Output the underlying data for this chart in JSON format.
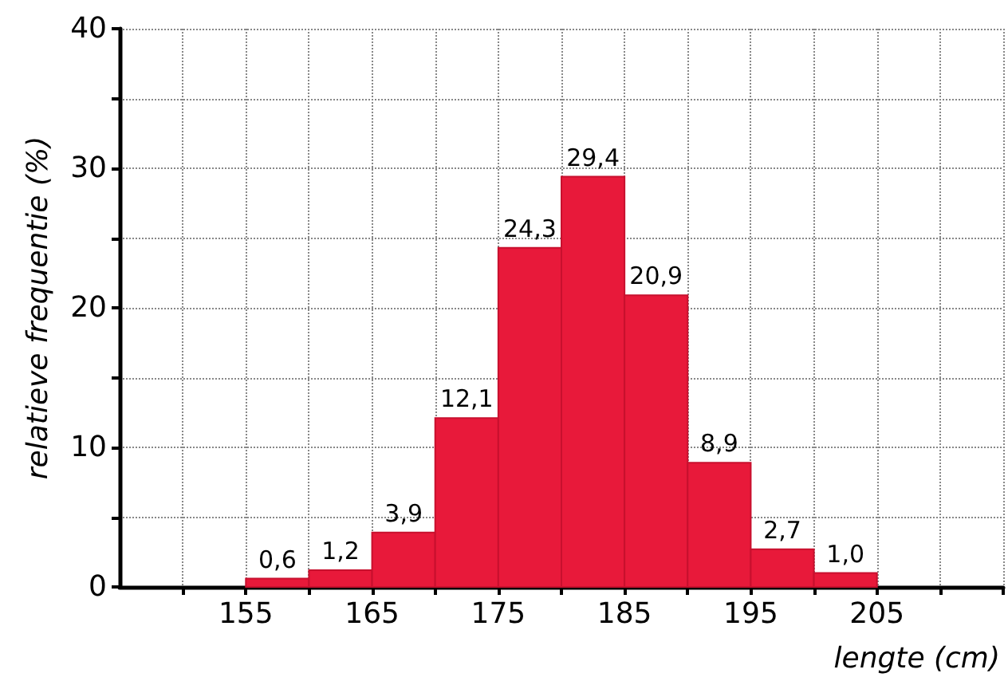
{
  "chart_data": {
    "type": "histogram",
    "xlabel": "lengte (cm)",
    "ylabel": "relatieve frequentie (%)",
    "bins": [
      155,
      160,
      165,
      170,
      175,
      180,
      185,
      190,
      195,
      200,
      205
    ],
    "values": [
      0.6,
      1.2,
      3.9,
      12.1,
      24.3,
      29.4,
      20.9,
      8.9,
      2.7,
      1.0
    ],
    "value_labels": [
      "0,6",
      "1,2",
      "3,9",
      "12,1",
      "24,3",
      "29,4",
      "20,9",
      "8,9",
      "2,7",
      "1,0"
    ],
    "color": "#e8193a",
    "grid": true,
    "xlim": [
      145,
      215
    ],
    "xticks": [
      {
        "value": 150,
        "label": null
      },
      155,
      {
        "value": 160,
        "label": null
      },
      165,
      {
        "value": 170,
        "label": null
      },
      175,
      {
        "value": 180,
        "label": null
      },
      185,
      {
        "value": 190,
        "label": null
      },
      195,
      {
        "value": 200,
        "label": null
      },
      205,
      {
        "value": 210,
        "label": null
      },
      {
        "value": 215,
        "label": null
      }
    ],
    "ylim": [
      0,
      40
    ],
    "yticks": [
      0,
      {
        "value": 5,
        "label": null
      },
      10,
      {
        "value": 15,
        "label": null
      },
      20,
      {
        "value": 25,
        "label": null
      },
      30,
      {
        "value": 35,
        "label": null
      },
      40
    ]
  }
}
